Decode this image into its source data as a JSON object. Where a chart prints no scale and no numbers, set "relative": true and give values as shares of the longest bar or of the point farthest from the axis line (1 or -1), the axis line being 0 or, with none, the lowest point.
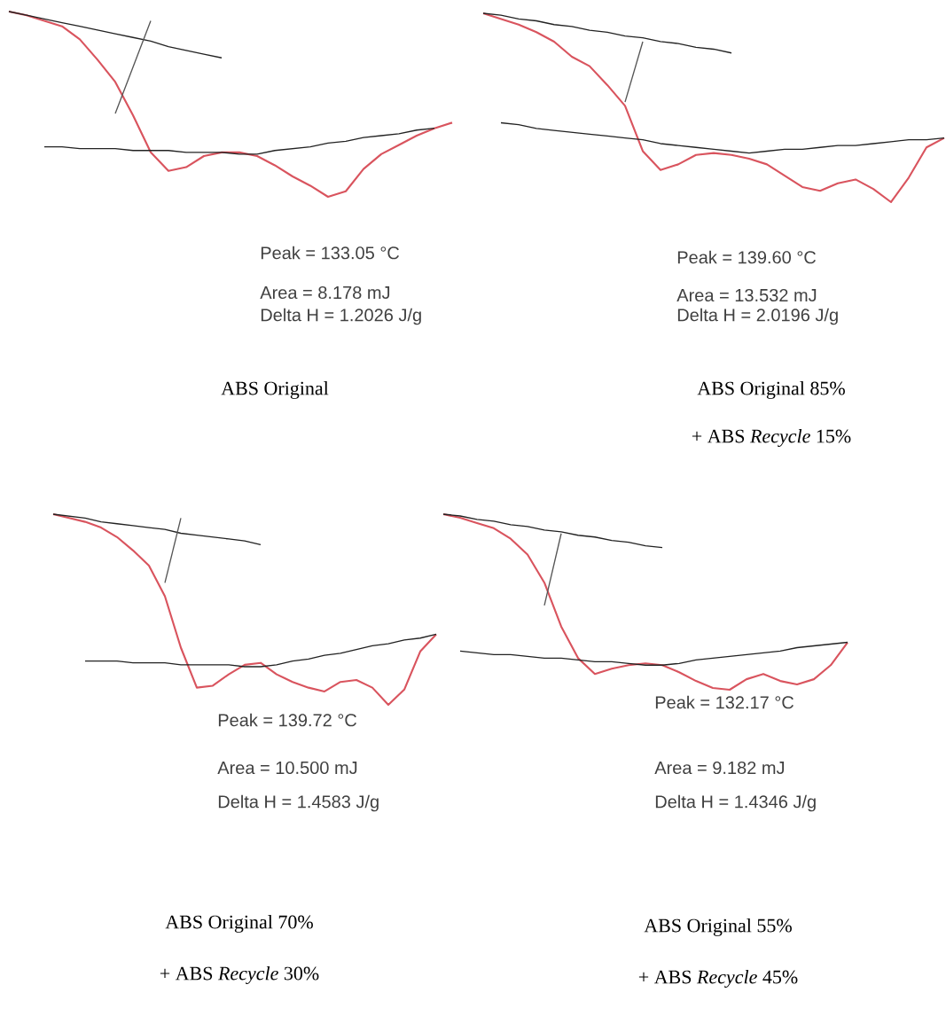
{
  "chart_data": [
    {
      "type": "line",
      "relative": true,
      "categories": [
        null,
        null,
        null,
        null,
        null,
        null,
        null,
        null,
        null,
        null,
        null,
        null,
        null,
        null,
        null,
        null,
        null,
        null,
        null,
        null,
        null,
        null,
        null,
        null,
        null,
        null
      ],
      "series": [
        {
          "color": "#d9545e",
          "values": [
            1.0,
            0.98,
            0.95,
            0.92,
            0.85,
            0.74,
            0.62,
            0.44,
            0.24,
            0.14,
            0.16,
            0.22,
            0.24,
            0.24,
            0.22,
            0.17,
            0.11,
            0.06,
            0.0,
            0.03,
            0.15,
            0.23,
            0.28,
            0.33,
            0.37,
            0.4
          ]
        },
        {
          "color": "#222222",
          "values": [
            1.0,
            0.98,
            0.96,
            0.94,
            0.92,
            0.9,
            0.88,
            0.86,
            0.84,
            0.81,
            0.79,
            0.77,
            0.75,
            null,
            null,
            null,
            null,
            null,
            null,
            null,
            null,
            null,
            null,
            null,
            null,
            null
          ]
        },
        {
          "color": "#555555",
          "values": [
            null,
            null,
            null,
            null,
            null,
            null,
            0.45,
            0.7,
            0.95,
            null,
            null,
            null,
            null,
            null,
            null,
            null,
            null,
            null,
            null,
            null,
            null,
            null,
            null,
            null,
            null,
            null
          ]
        },
        {
          "color": "#222222",
          "values": [
            null,
            null,
            0.27,
            0.27,
            0.26,
            0.26,
            0.26,
            0.25,
            0.25,
            0.25,
            0.24,
            0.24,
            0.24,
            0.23,
            0.23,
            0.25,
            0.26,
            0.27,
            0.29,
            0.3,
            0.32,
            0.33,
            0.34,
            0.36,
            0.37,
            null
          ]
        }
      ],
      "annotations": [
        "Peak = 133.05 °C",
        "Area = 8.178 mJ",
        "Delta H = 1.2026 J/g",
        "ABS Original"
      ]
    },
    {
      "type": "line",
      "relative": true,
      "categories": [
        null,
        null,
        null,
        null,
        null,
        null,
        null,
        null,
        null,
        null,
        null,
        null,
        null,
        null,
        null,
        null,
        null,
        null,
        null,
        null,
        null,
        null,
        null,
        null,
        null,
        null,
        null
      ],
      "series": [
        {
          "color": "#d9545e",
          "values": [
            1.0,
            0.97,
            0.94,
            0.9,
            0.85,
            0.77,
            0.72,
            0.62,
            0.51,
            0.27,
            0.17,
            0.2,
            0.25,
            0.26,
            0.25,
            0.23,
            0.2,
            0.14,
            0.08,
            0.06,
            0.1,
            0.12,
            0.07,
            0.0,
            0.13,
            0.29,
            0.34
          ]
        },
        {
          "color": "#222222",
          "values": [
            1.0,
            0.99,
            0.97,
            0.96,
            0.94,
            0.93,
            0.91,
            0.9,
            0.88,
            0.87,
            0.85,
            0.84,
            0.82,
            0.81,
            0.79,
            null,
            null,
            null,
            null,
            null,
            null,
            null,
            null,
            null,
            null,
            null,
            null
          ]
        },
        {
          "color": "#555555",
          "values": [
            null,
            null,
            null,
            null,
            null,
            null,
            null,
            null,
            0.53,
            0.85,
            null,
            null,
            null,
            null,
            null,
            null,
            null,
            null,
            null,
            null,
            null,
            null,
            null,
            null,
            null,
            null,
            null
          ]
        },
        {
          "color": "#222222",
          "values": [
            null,
            0.42,
            0.41,
            0.39,
            0.38,
            0.37,
            0.36,
            0.35,
            0.34,
            0.33,
            0.31,
            0.3,
            0.29,
            0.28,
            0.27,
            0.26,
            0.27,
            0.28,
            0.28,
            0.29,
            0.3,
            0.3,
            0.31,
            0.32,
            0.33,
            0.33,
            0.34
          ]
        }
      ],
      "annotations": [
        "Peak = 139.60 °C",
        "Area = 13.532 mJ",
        "Delta H = 2.0196 J/g",
        "ABS Original 85%",
        "+ ABS *Recycle* 15%"
      ]
    },
    {
      "type": "line",
      "relative": true,
      "categories": [
        null,
        null,
        null,
        null,
        null,
        null,
        null,
        null,
        null,
        null,
        null,
        null,
        null,
        null,
        null,
        null,
        null,
        null,
        null,
        null,
        null,
        null,
        null,
        null,
        null
      ],
      "series": [
        {
          "color": "#d9545e",
          "values": [
            1.0,
            0.98,
            0.96,
            0.93,
            0.88,
            0.81,
            0.73,
            0.57,
            0.3,
            0.09,
            0.1,
            0.16,
            0.21,
            0.22,
            0.16,
            0.12,
            0.09,
            0.07,
            0.12,
            0.13,
            0.09,
            0.0,
            0.08,
            0.28,
            0.37
          ]
        },
        {
          "color": "#222222",
          "values": [
            1.0,
            0.99,
            0.98,
            0.96,
            0.95,
            0.94,
            0.93,
            0.92,
            0.9,
            0.89,
            0.88,
            0.87,
            0.86,
            0.84,
            null,
            null,
            null,
            null,
            null,
            null,
            null,
            null,
            null,
            null,
            null
          ]
        },
        {
          "color": "#555555",
          "values": [
            null,
            null,
            null,
            null,
            null,
            null,
            null,
            0.64,
            0.98,
            null,
            null,
            null,
            null,
            null,
            null,
            null,
            null,
            null,
            null,
            null,
            null,
            null,
            null,
            null,
            null
          ]
        },
        {
          "color": "#222222",
          "values": [
            null,
            null,
            0.23,
            0.23,
            0.23,
            0.22,
            0.22,
            0.22,
            0.21,
            0.21,
            0.21,
            0.21,
            0.2,
            0.2,
            0.21,
            0.23,
            0.24,
            0.26,
            0.27,
            0.29,
            0.31,
            0.32,
            0.34,
            0.35,
            0.37
          ]
        }
      ],
      "annotations": [
        "Peak = 139.72 °C",
        "Area = 10.500 mJ",
        "Delta H = 1.4583 J/g",
        "ABS Original 70%",
        "+ ABS *Recycle* 30%"
      ]
    },
    {
      "type": "line",
      "relative": true,
      "categories": [
        null,
        null,
        null,
        null,
        null,
        null,
        null,
        null,
        null,
        null,
        null,
        null,
        null,
        null,
        null,
        null,
        null,
        null,
        null,
        null,
        null,
        null,
        null,
        null,
        null
      ],
      "series": [
        {
          "color": "#d9545e",
          "values": [
            1.0,
            0.98,
            0.95,
            0.92,
            0.86,
            0.77,
            0.61,
            0.36,
            0.18,
            0.09,
            0.12,
            0.14,
            0.15,
            0.14,
            0.1,
            0.05,
            0.01,
            0.0,
            0.06,
            0.09,
            0.05,
            0.03,
            0.06,
            0.14,
            0.27
          ]
        },
        {
          "color": "#222222",
          "values": [
            1.0,
            0.99,
            0.97,
            0.96,
            0.94,
            0.93,
            0.91,
            0.9,
            0.88,
            0.87,
            0.85,
            0.84,
            0.82,
            0.81,
            null,
            null,
            null,
            null,
            null,
            null,
            null,
            null,
            null,
            null,
            null
          ]
        },
        {
          "color": "#555555",
          "values": [
            null,
            null,
            null,
            null,
            null,
            null,
            0.48,
            0.89,
            null,
            null,
            null,
            null,
            null,
            null,
            null,
            null,
            null,
            null,
            null,
            null,
            null,
            null,
            null,
            null,
            null
          ]
        },
        {
          "color": "#222222",
          "values": [
            null,
            0.22,
            0.21,
            0.2,
            0.2,
            0.19,
            0.18,
            0.18,
            0.17,
            0.16,
            0.16,
            0.15,
            0.14,
            0.14,
            0.15,
            0.17,
            0.18,
            0.19,
            0.2,
            0.21,
            0.22,
            0.24,
            0.25,
            0.26,
            0.27
          ]
        }
      ],
      "annotations": [
        "Peak = 132.17 °C",
        "Area = 9.182 mJ",
        "Delta H = 1.4346 J/g",
        "ABS Original 55%",
        "+ ABS *Recycle* 45%"
      ]
    }
  ]
}
